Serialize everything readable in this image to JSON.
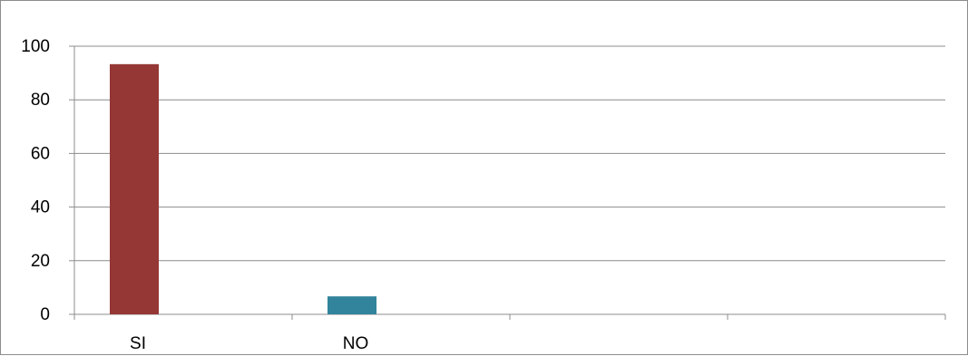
{
  "chart_data": {
    "type": "bar",
    "categories": [
      "SI",
      "NO",
      "",
      ""
    ],
    "series": [
      {
        "values": [
          93.3,
          null,
          null,
          null
        ],
        "color": "#953735"
      },
      {
        "values": [
          null,
          6.7,
          null,
          null
        ],
        "color": "#31849b"
      }
    ],
    "ylim": [
      0,
      100
    ],
    "yticks": [
      0,
      20,
      40,
      60,
      80,
      100
    ],
    "grid": true,
    "legend": "none",
    "title": "",
    "xlabel": "",
    "ylabel": ""
  }
}
